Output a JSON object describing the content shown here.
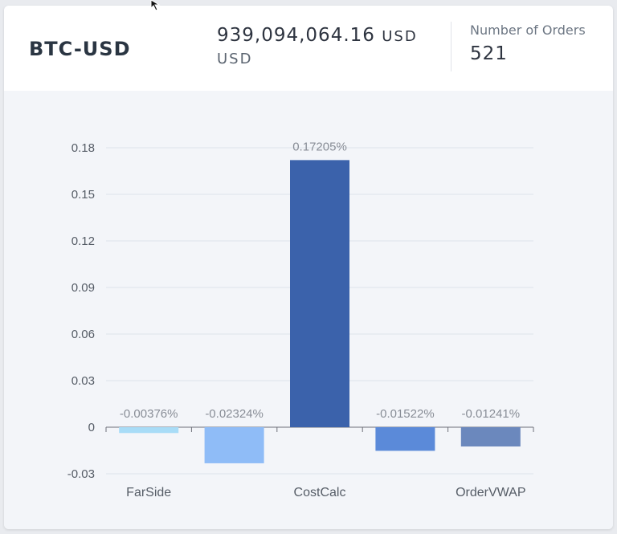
{
  "header": {
    "symbol": "BTC-USD",
    "volume_value": "939,094,064.16",
    "volume_unit": "USD",
    "volume_unit_line": "USD",
    "orders_label": "Number of Orders",
    "orders_value": "521"
  },
  "chart_data": {
    "type": "bar",
    "categories": [
      "FarSide",
      "",
      "CostCalc",
      "",
      "OrderVWAP"
    ],
    "values": [
      -0.00376,
      -0.02324,
      0.17205,
      -0.01522,
      -0.01241
    ],
    "data_labels": [
      "-0.00376%",
      "-0.02324%",
      "0.17205%",
      "-0.01522%",
      "-0.01241%"
    ],
    "colors": [
      "#a8dcf7",
      "#8fbcf7",
      "#3b62ab",
      "#5b8ad9",
      "#6b88bd"
    ],
    "yticks": [
      "0.18",
      "0.15",
      "0.12",
      "0.09",
      "0.06",
      "0.03",
      "0",
      "-0.03"
    ],
    "ylim": [
      -0.03,
      0.18
    ],
    "grid": true,
    "xlabel": "",
    "ylabel": ""
  }
}
